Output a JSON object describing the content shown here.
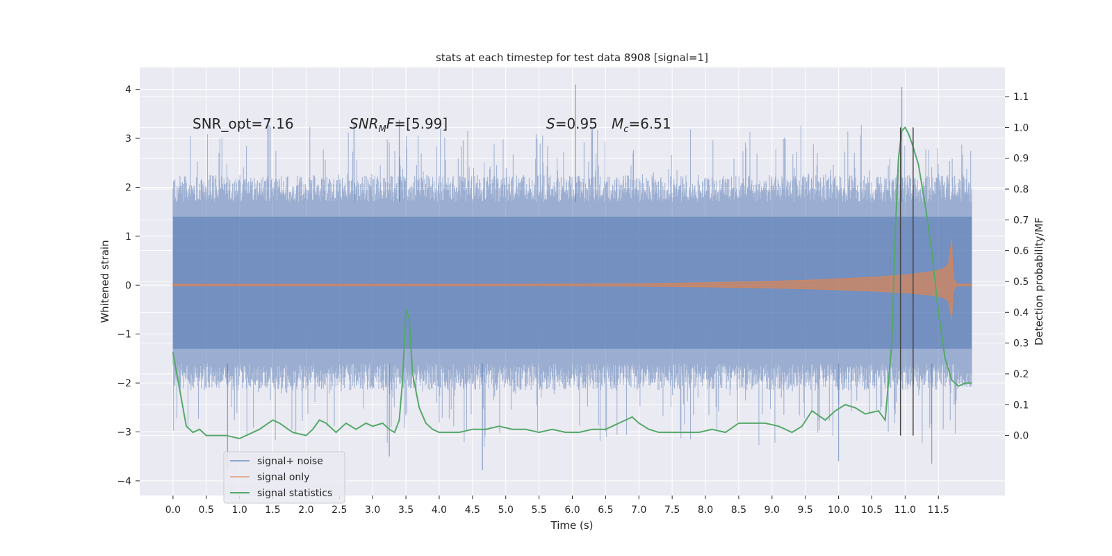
{
  "chart_data": {
    "type": "line",
    "title": "stats at each timestep for test data 8908 [signal=1]",
    "xlabel": "Time (s)",
    "ylabel_left": "Whitened strain",
    "ylabel_right": "Detection probability/MF",
    "xlim": [
      -0.5,
      12.5
    ],
    "ylim_left": [
      -4.3,
      4.45
    ],
    "ylim_right": [
      -0.195,
      1.195
    ],
    "x_ticks": [
      0.0,
      0.5,
      1.0,
      1.5,
      2.0,
      2.5,
      3.0,
      3.5,
      4.0,
      4.5,
      5.0,
      5.5,
      6.0,
      6.5,
      7.0,
      7.5,
      8.0,
      8.5,
      9.0,
      9.5,
      10.0,
      10.5,
      11.0,
      11.5
    ],
    "x_tick_labels": [
      "0.0",
      "0.5",
      "1.0",
      "1.5",
      "2.0",
      "2.5",
      "3.0",
      "3.5",
      "4.0",
      "4.5",
      "5.0",
      "5.5",
      "6.0",
      "6.5",
      "7.0",
      "7.5",
      "8.0",
      "8.5",
      "9.0",
      "9.5",
      "10.0",
      "10.5",
      "11.0",
      "11.5"
    ],
    "y_left_ticks": [
      -4,
      -3,
      -2,
      -1,
      0,
      1,
      2,
      3,
      4
    ],
    "y_left_tick_labels": [
      "−4",
      "−3",
      "−2",
      "−1",
      "0",
      "1",
      "2",
      "3",
      "4"
    ],
    "y_right_ticks": [
      0.0,
      0.1,
      0.2,
      0.3,
      0.4,
      0.5,
      0.6,
      0.7,
      0.8,
      0.9,
      1.0,
      1.1
    ],
    "y_right_tick_labels": [
      "0.0",
      "0.1",
      "0.2",
      "0.3",
      "0.4",
      "0.5",
      "0.6",
      "0.7",
      "0.8",
      "0.9",
      "1.0",
      "1.1"
    ],
    "grid": true,
    "legend_position": "lower-left",
    "series": [
      {
        "name": "signal+ noise",
        "color": "#4c72b0",
        "axis": "left",
        "kind": "dense noise trace",
        "x_range": [
          0.0,
          12.0
        ],
        "typical_range": [
          -1.6,
          1.7
        ],
        "peaks": [
          {
            "x": 6.05,
            "y": 4.1
          },
          {
            "x": 10.95,
            "y": 4.05
          },
          {
            "x": 3.4,
            "y": 3.38
          },
          {
            "x": 2.72,
            "y": 3.32
          },
          {
            "x": 0.82,
            "y": -3.75
          },
          {
            "x": 4.65,
            "y": -3.78
          },
          {
            "x": 11.4,
            "y": -3.65
          },
          {
            "x": 10.0,
            "y": -3.6
          },
          {
            "x": 3.25,
            "y": -3.5
          }
        ]
      },
      {
        "name": "signal only",
        "color": "#dd8452",
        "axis": "left",
        "kind": "chirp envelope",
        "x_range": [
          0.0,
          12.0
        ],
        "merger_time": 11.67,
        "envelope": {
          "x": [
            0.0,
            5.0,
            7.0,
            8.0,
            9.0,
            9.5,
            10.0,
            10.5,
            10.8,
            11.0,
            11.2,
            11.4,
            11.55,
            11.65,
            11.7,
            11.72,
            11.78,
            12.0
          ],
          "y": [
            0.02,
            0.02,
            0.03,
            0.05,
            0.08,
            0.1,
            0.13,
            0.16,
            0.19,
            0.21,
            0.24,
            0.28,
            0.32,
            0.42,
            0.95,
            0.15,
            0.02,
            0.02
          ]
        }
      },
      {
        "name": "signal statistics",
        "color": "#55a868",
        "axis": "right",
        "kind": "line",
        "x": [
          0.0,
          0.1,
          0.2,
          0.3,
          0.4,
          0.5,
          0.6,
          0.8,
          1.0,
          1.1,
          1.3,
          1.5,
          1.6,
          1.8,
          2.0,
          2.1,
          2.2,
          2.3,
          2.45,
          2.6,
          2.75,
          2.9,
          3.0,
          3.15,
          3.25,
          3.33,
          3.4,
          3.45,
          3.5,
          3.55,
          3.6,
          3.7,
          3.8,
          3.9,
          4.0,
          4.1,
          4.3,
          4.5,
          4.7,
          4.9,
          5.1,
          5.3,
          5.5,
          5.7,
          5.9,
          6.1,
          6.3,
          6.5,
          6.7,
          6.9,
          7.0,
          7.15,
          7.3,
          7.5,
          7.7,
          7.9,
          8.1,
          8.3,
          8.5,
          8.7,
          8.9,
          9.1,
          9.3,
          9.45,
          9.6,
          9.8,
          9.95,
          10.1,
          10.25,
          10.4,
          10.6,
          10.7,
          10.8,
          10.85,
          10.9,
          10.95,
          11.0,
          11.05,
          11.1,
          11.2,
          11.3,
          11.4,
          11.5,
          11.6,
          11.7,
          11.8,
          11.9,
          12.0
        ],
        "y": [
          0.27,
          0.15,
          0.03,
          0.01,
          0.02,
          0.0,
          0.0,
          0.0,
          -0.01,
          0.0,
          0.02,
          0.05,
          0.04,
          0.01,
          0.0,
          0.02,
          0.05,
          0.04,
          0.01,
          0.04,
          0.02,
          0.04,
          0.03,
          0.04,
          0.02,
          0.01,
          0.05,
          0.18,
          0.41,
          0.38,
          0.2,
          0.09,
          0.04,
          0.02,
          0.01,
          0.01,
          0.01,
          0.02,
          0.02,
          0.03,
          0.02,
          0.02,
          0.01,
          0.02,
          0.01,
          0.01,
          0.02,
          0.02,
          0.04,
          0.06,
          0.04,
          0.02,
          0.01,
          0.01,
          0.01,
          0.01,
          0.02,
          0.01,
          0.04,
          0.04,
          0.04,
          0.03,
          0.01,
          0.03,
          0.08,
          0.05,
          0.08,
          0.1,
          0.09,
          0.07,
          0.08,
          0.05,
          0.3,
          0.65,
          0.9,
          0.99,
          1.0,
          0.98,
          0.95,
          0.88,
          0.75,
          0.6,
          0.4,
          0.25,
          0.18,
          0.16,
          0.17,
          0.17
        ]
      }
    ],
    "vertical_lines": [
      {
        "x": 10.93,
        "y_range": [
          0.0,
          1.0
        ],
        "color": "#444444"
      },
      {
        "x": 11.12,
        "y_range": [
          0.0,
          1.0
        ],
        "color": "#444444"
      }
    ],
    "annotations": {
      "snr_opt": "SNR_opt=7.16",
      "snr_mf_label": "SNR",
      "snr_mf_sub": "M",
      "snr_mf_rest": "F",
      "snr_mf_value": "=[5.99]",
      "s_label": "S",
      "s_value": "=0.95",
      "mc_label": "M",
      "mc_sub": "c",
      "mc_value": "=6.51"
    }
  }
}
